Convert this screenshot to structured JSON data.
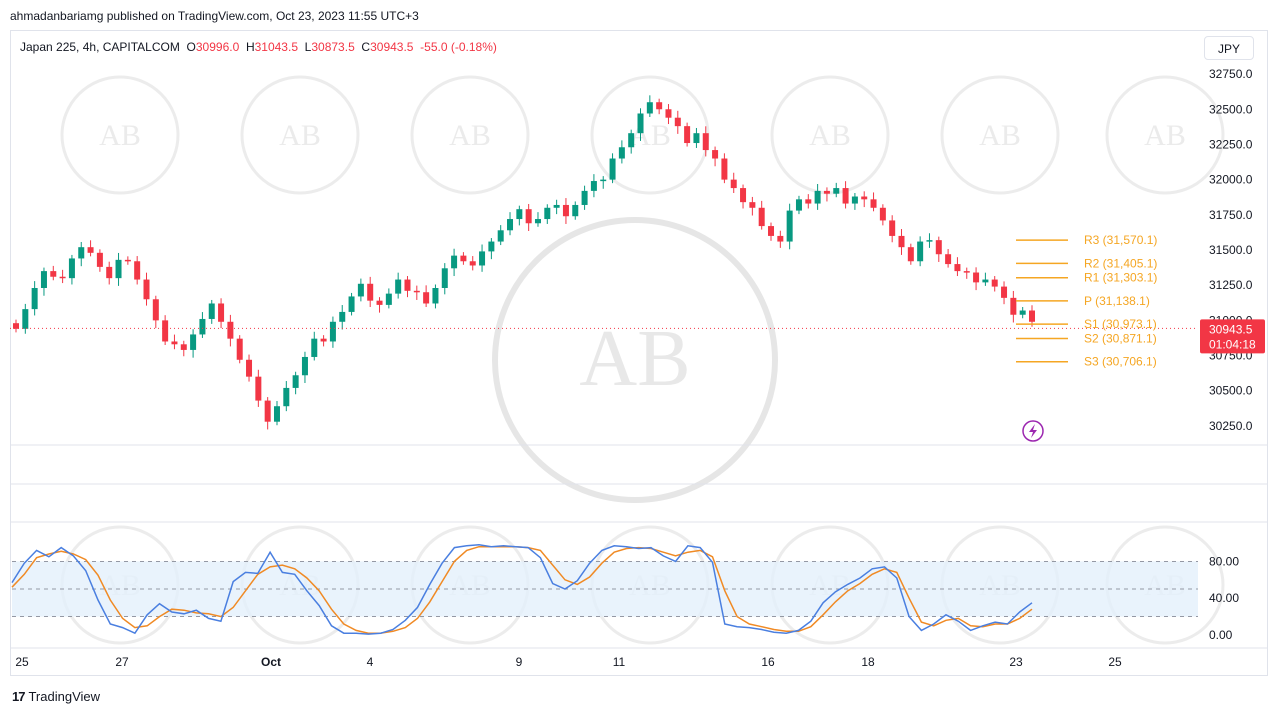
{
  "publish_line": "ahmadanbariamg published on TradingView.com, Oct 23, 2023 11:55 UTC+3",
  "legend": {
    "symbol": "Japan 225, 4h, CAPITALCOM",
    "open_label": "O",
    "open": "30996.0",
    "high_label": "H",
    "high": "31043.5",
    "low_label": "L",
    "low": "30873.5",
    "close_label": "C",
    "close": "30943.5",
    "change": "-55.0 (-0.18%)"
  },
  "currency": "JPY",
  "price_badge": {
    "price": "30943.5",
    "countdown": "01:04:18"
  },
  "footer": {
    "logo": "17",
    "brand": "TradingView"
  },
  "watermark_text": "AB",
  "colors": {
    "up": "#089981",
    "down": "#f23645",
    "pivot": "#f5a623",
    "k_line": "#4a7fe0",
    "d_line": "#f08a24",
    "band": "#e3f0fb"
  },
  "chart_data": {
    "type": "candlestick",
    "title": "Japan 225, 4h, CAPITALCOM",
    "price_axis": {
      "ticks": [
        "32750.0",
        "32500.0",
        "32250.0",
        "32000.0",
        "31750.0",
        "31500.0",
        "31250.0",
        "31000.0",
        "30750.0",
        "30500.0",
        "30250.0"
      ],
      "range": [
        30150,
        32850
      ]
    },
    "time_axis": {
      "ticks": [
        "25",
        "27",
        "Oct",
        "4",
        "9",
        "11",
        "16",
        "18",
        "23",
        "25"
      ]
    },
    "candles_close": [
      30940,
      31080,
      31230,
      31350,
      31310,
      31300,
      31440,
      31520,
      31480,
      31380,
      31300,
      31430,
      31420,
      31290,
      31150,
      31000,
      30850,
      30830,
      30790,
      30900,
      31010,
      31120,
      30990,
      30870,
      30720,
      30600,
      30430,
      30280,
      30390,
      30520,
      30610,
      30740,
      30870,
      30850,
      30990,
      31060,
      31170,
      31260,
      31140,
      31110,
      31190,
      31290,
      31210,
      31200,
      31120,
      31230,
      31370,
      31460,
      31420,
      31390,
      31490,
      31560,
      31640,
      31720,
      31790,
      31690,
      31720,
      31800,
      31820,
      31740,
      31820,
      31920,
      31990,
      32000,
      32150,
      32230,
      32330,
      32470,
      32550,
      32500,
      32440,
      32380,
      32260,
      32330,
      32210,
      32150,
      32000,
      31940,
      31840,
      31800,
      31670,
      31600,
      31560,
      31780,
      31860,
      31830,
      31920,
      31900,
      31940,
      31830,
      31880,
      31860,
      31800,
      31710,
      31600,
      31520,
      31420,
      31560,
      31570,
      31470,
      31400,
      31350,
      31340,
      31270,
      31290,
      31240,
      31160,
      31040,
      31070,
      30990
    ],
    "pivots": [
      {
        "label": "R3 (31,570.1)",
        "value": 31570.1
      },
      {
        "label": "R2 (31,405.1)",
        "value": 31405.1
      },
      {
        "label": "R1 (31,303.1)",
        "value": 31303.1
      },
      {
        "label": "P (31,138.1)",
        "value": 31138.1
      },
      {
        "label": "S1 (30,973.1)",
        "value": 30973.1
      },
      {
        "label": "S2 (30,871.1)",
        "value": 30871.1
      },
      {
        "label": "S3 (30,706.1)",
        "value": 30706.1
      }
    ],
    "last_price": 30943.5,
    "oscillator": {
      "type": "stochastic",
      "ticks": [
        "80.00",
        "40.00",
        "0.00"
      ],
      "levels": [
        80,
        50,
        20
      ],
      "range": [
        0,
        100
      ],
      "k": [
        57,
        78,
        92,
        85,
        95,
        86,
        70,
        38,
        12,
        8,
        2,
        22,
        34,
        25,
        23,
        27,
        18,
        15,
        58,
        68,
        67,
        90,
        68,
        66,
        48,
        32,
        10,
        2,
        2,
        1,
        2,
        6,
        16,
        30,
        55,
        78,
        95,
        97,
        98,
        96,
        97,
        96,
        95,
        84,
        56,
        50,
        59,
        78,
        92,
        97,
        96,
        94,
        95,
        86,
        80,
        97,
        95,
        79,
        12,
        9,
        8,
        6,
        3,
        2,
        5,
        15,
        35,
        47,
        55,
        62,
        72,
        74,
        62,
        20,
        5,
        12,
        22,
        15,
        5,
        10,
        14,
        12,
        25,
        35
      ],
      "d": [
        52,
        66,
        84,
        88,
        91,
        88,
        82,
        65,
        38,
        18,
        8,
        10,
        20,
        28,
        27,
        24,
        23,
        20,
        30,
        48,
        66,
        74,
        76,
        72,
        62,
        48,
        28,
        12,
        5,
        2,
        2,
        4,
        8,
        18,
        36,
        58,
        80,
        92,
        96,
        96,
        96,
        96,
        95,
        92,
        76,
        60,
        55,
        63,
        78,
        90,
        94,
        95,
        94,
        90,
        86,
        90,
        92,
        85,
        48,
        20,
        12,
        9,
        6,
        4,
        4,
        9,
        22,
        36,
        48,
        56,
        66,
        72,
        68,
        40,
        14,
        10,
        16,
        18,
        10,
        9,
        12,
        12,
        18,
        28
      ]
    }
  }
}
